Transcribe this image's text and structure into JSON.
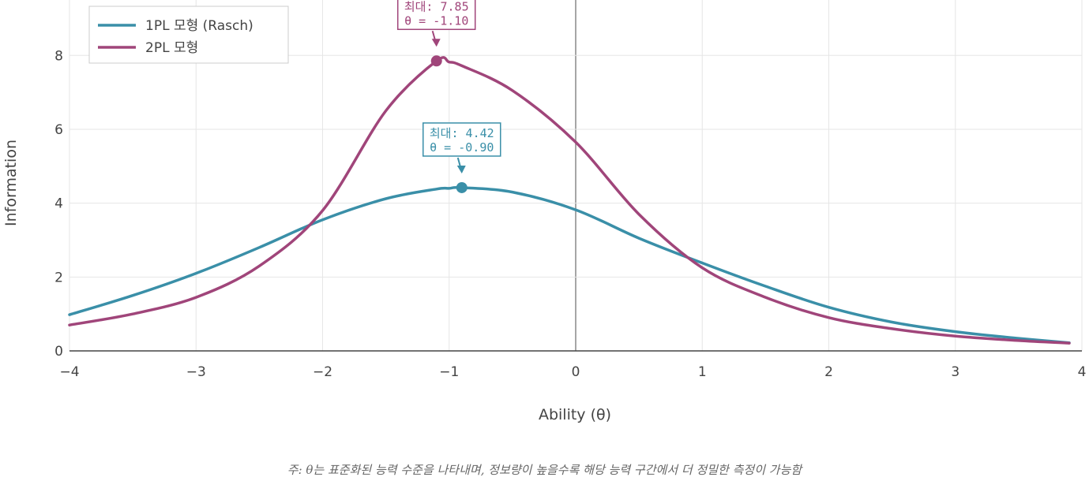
{
  "chart_data": {
    "type": "line",
    "xlabel": "Ability (θ)",
    "ylabel": "Information",
    "xlim": [
      -4,
      4
    ],
    "ylim": [
      0,
      9.5
    ],
    "x_ticks": [
      -4,
      -3,
      -2,
      -1,
      0,
      1,
      2,
      3,
      4
    ],
    "x_tick_labels": [
      "−4",
      "−3",
      "−2",
      "−1",
      "0",
      "1",
      "2",
      "3",
      "4"
    ],
    "y_ticks": [
      0,
      2,
      4,
      6,
      8
    ],
    "y_tick_labels": [
      "0",
      "2",
      "4",
      "6",
      "8"
    ],
    "grid": true,
    "legend_position": "top-left",
    "x": [
      -4,
      -3.5,
      -3,
      -2.5,
      -2,
      -1.5,
      -1.1,
      -1,
      -0.9,
      -0.5,
      0,
      0.5,
      1,
      1.5,
      2,
      2.5,
      3,
      3.5,
      3.9
    ],
    "series": [
      {
        "name": "1PL 모형 (Rasch)",
        "color": "#3a8fa8",
        "values": [
          0.98,
          1.5,
          2.1,
          2.8,
          3.55,
          4.12,
          4.38,
          4.4,
          4.42,
          4.3,
          3.82,
          3.05,
          2.38,
          1.75,
          1.18,
          0.78,
          0.52,
          0.34,
          0.22
        ]
      },
      {
        "name": "2PL 모형",
        "color": "#a0457a",
        "values": [
          0.7,
          1.0,
          1.45,
          2.3,
          3.8,
          6.5,
          7.85,
          7.82,
          7.72,
          7.05,
          5.65,
          3.7,
          2.25,
          1.45,
          0.9,
          0.6,
          0.4,
          0.28,
          0.21
        ]
      }
    ],
    "annotations": [
      {
        "series_index": 1,
        "x": -1.1,
        "y": 7.85,
        "line1": "최대: 7.85",
        "line2": "θ = -1.10",
        "color": "#a0457a"
      },
      {
        "series_index": 0,
        "x": -0.9,
        "y": 4.42,
        "line1": "최대: 4.42",
        "line2": "θ = -0.90",
        "color": "#3a8fa8"
      }
    ]
  },
  "footnote": "주: θ는 표준화된 능력 수준을 나타내며, 정보량이 높을수록 해당 능력 구간에서 더 정밀한 측정이 가능함"
}
